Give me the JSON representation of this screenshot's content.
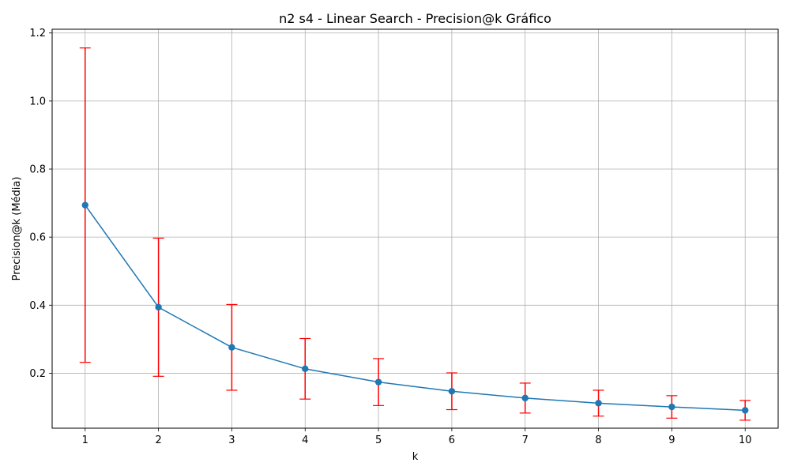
{
  "chart_data": {
    "type": "line",
    "title": "n2 s4 - Linear Search - Precision@k Gráfico",
    "xlabel": "k",
    "ylabel": "Precision@k (Média)",
    "x": [
      1,
      2,
      3,
      4,
      5,
      6,
      7,
      8,
      9,
      10
    ],
    "x_ticks": [
      "1",
      "2",
      "3",
      "4",
      "5",
      "6",
      "7",
      "8",
      "9",
      "10"
    ],
    "y_ticks": [
      "0.2",
      "0.4",
      "0.6",
      "0.8",
      "1.0",
      "1.2"
    ],
    "xlim": [
      0.55,
      10.45
    ],
    "ylim": [
      0.0385,
      1.211
    ],
    "grid": true,
    "series": [
      {
        "values": [
          0.694,
          0.394,
          0.276,
          0.213,
          0.174,
          0.147,
          0.127,
          0.112,
          0.101,
          0.091
        ],
        "error": [
          0.462,
          0.203,
          0.126,
          0.089,
          0.069,
          0.054,
          0.044,
          0.038,
          0.033,
          0.029
        ],
        "line_color": "#1f77b4",
        "error_color": "#ff0000"
      }
    ]
  }
}
